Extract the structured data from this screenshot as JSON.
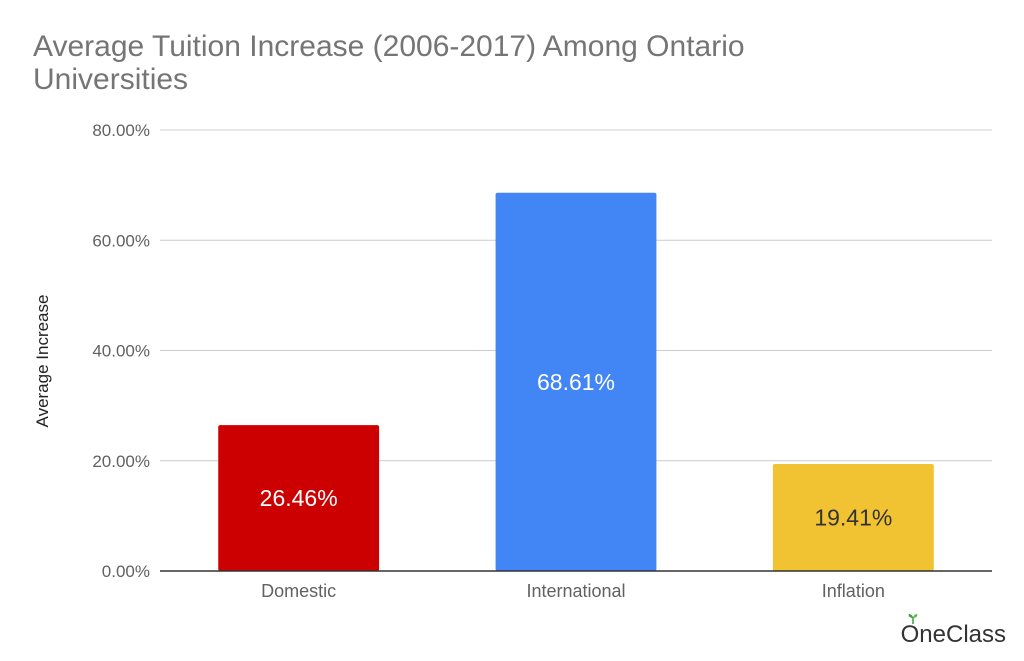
{
  "chart_data": {
    "type": "bar",
    "title": "Average Tuition Increase (2006-2017) Among Ontario Universities",
    "xlabel": "",
    "ylabel": "Average Increase",
    "categories": [
      "Domestic",
      "International",
      "Inflation"
    ],
    "values": [
      26.46,
      68.61,
      19.41
    ],
    "data_labels": [
      "26.46%",
      "68.61%",
      "19.41%"
    ],
    "bar_colors": [
      "#cc0000",
      "#4285f4",
      "#f1c232"
    ],
    "data_label_colors": [
      "#ffffff",
      "#ffffff",
      "#333333"
    ],
    "ylim": [
      0,
      80
    ],
    "yticks": [
      0,
      20,
      40,
      60,
      80
    ],
    "ytick_labels": [
      "0.00%",
      "20.00%",
      "40.00%",
      "60.00%",
      "80.00%"
    ],
    "grid": true,
    "legend": "none"
  },
  "branding": {
    "text": "OneClass"
  }
}
